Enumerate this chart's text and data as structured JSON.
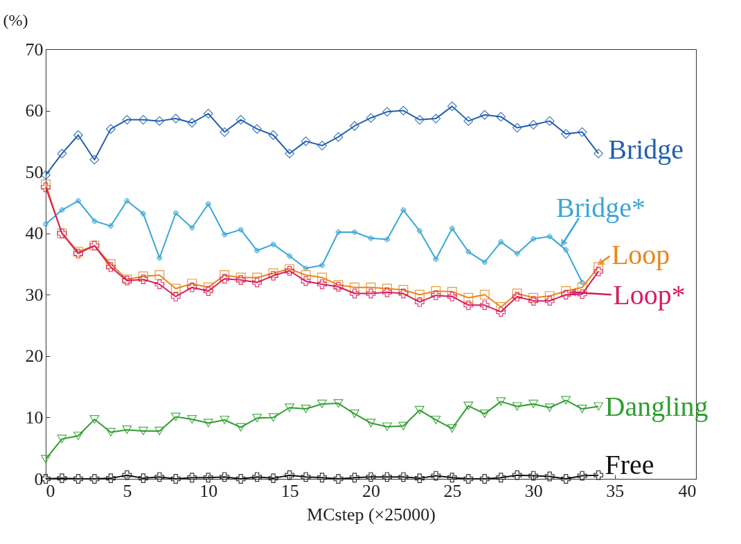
{
  "chart_data": {
    "type": "line",
    "xlabel": "MCstep (×25000)",
    "ylabel": "(%)",
    "xlim": [
      0,
      40
    ],
    "xticks": [
      0,
      5,
      10,
      15,
      20,
      25,
      30,
      35,
      40
    ],
    "ylim": [
      0,
      70
    ],
    "yticks": [
      0,
      10,
      20,
      30,
      40,
      50,
      60,
      70
    ],
    "grid": false,
    "legend": "right",
    "x": [
      0,
      1,
      2,
      3,
      4,
      5,
      6,
      7,
      8,
      9,
      10,
      11,
      12,
      13,
      14,
      15,
      16,
      17,
      18,
      19,
      20,
      21,
      22,
      23,
      24,
      25,
      26,
      27,
      28,
      29,
      30,
      31,
      32,
      33,
      34
    ],
    "series": [
      {
        "name": "Bridge",
        "color": "#1f5fb0",
        "marker": "diamond",
        "values": [
          49.5,
          53,
          56,
          52,
          57,
          58.5,
          58.5,
          58.3,
          58.7,
          58,
          59.5,
          56.5,
          58.5,
          57,
          56,
          53,
          55,
          54.3,
          55.7,
          57.5,
          58.8,
          59.8,
          60,
          58.5,
          58.7,
          60.7,
          58.3,
          59.3,
          59,
          57.2,
          57.7,
          58.3,
          56.2,
          56.5,
          53
        ]
      },
      {
        "name": "Bridge*",
        "color": "#3aa6d8",
        "marker": "cross",
        "values": [
          41.5,
          43.8,
          45.3,
          42,
          41.2,
          45.3,
          43.2,
          36,
          43.3,
          40.9,
          44.8,
          39.8,
          40.6,
          37.2,
          38.2,
          36.3,
          34.3,
          34.8,
          40.2,
          40.2,
          39.2,
          39,
          43.8,
          40.4,
          35.8,
          40.8,
          37,
          35.3,
          38.6,
          36.7,
          39.1,
          39.5,
          37.3,
          32,
          null
        ]
      },
      {
        "name": "Loop",
        "color": "#e8861c",
        "marker": "square",
        "values": [
          48,
          40,
          37,
          38,
          35,
          32.5,
          33,
          33.2,
          31,
          31.8,
          31.2,
          33.2,
          32.8,
          32.8,
          33.5,
          34.2,
          33.2,
          32.8,
          31.6,
          31.2,
          31.2,
          31,
          30.8,
          30,
          30.6,
          30.5,
          29.5,
          30,
          28,
          30.2,
          29.5,
          29.8,
          30.6,
          31.2,
          34.5
        ]
      },
      {
        "name": "Loop*",
        "color": "#d81b60",
        "marker": "cross",
        "values": [
          47.5,
          40,
          36.7,
          38,
          34.5,
          32.3,
          32.5,
          31.7,
          29.7,
          31.2,
          30.6,
          32.6,
          32.4,
          32,
          33.1,
          33.9,
          32.2,
          31.7,
          31.3,
          30.2,
          30.2,
          30.4,
          30.2,
          28.8,
          29.9,
          29.7,
          28.3,
          28.3,
          27.2,
          29.7,
          29,
          29,
          30,
          30.1,
          33.8
        ]
      },
      {
        "name": "Dangling",
        "color": "#2e9e2e",
        "marker": "triangle",
        "values": [
          3.2,
          6.5,
          7,
          9.7,
          7.6,
          8,
          7.8,
          7.8,
          10.1,
          9.7,
          9.1,
          9.6,
          8.4,
          9.9,
          10,
          11.6,
          11.4,
          12.2,
          12.3,
          10.6,
          9.1,
          8.5,
          8.6,
          11.2,
          9.6,
          8.2,
          11.9,
          10.6,
          12.6,
          11.8,
          12.2,
          11.6,
          12.8,
          11.4,
          11.8
        ]
      },
      {
        "name": "Free",
        "color": "#111111",
        "marker": "cross",
        "values": [
          0,
          0.1,
          0,
          0,
          0.1,
          0.6,
          0.1,
          0.3,
          0,
          0.2,
          0.2,
          0.3,
          0,
          0.3,
          0.1,
          0.6,
          0.3,
          0.2,
          0,
          0.2,
          0.3,
          0.3,
          0.3,
          0.1,
          0.5,
          0.2,
          0,
          0,
          0.2,
          0.6,
          0.5,
          0.4,
          0,
          0.5,
          0.6
        ]
      }
    ]
  }
}
